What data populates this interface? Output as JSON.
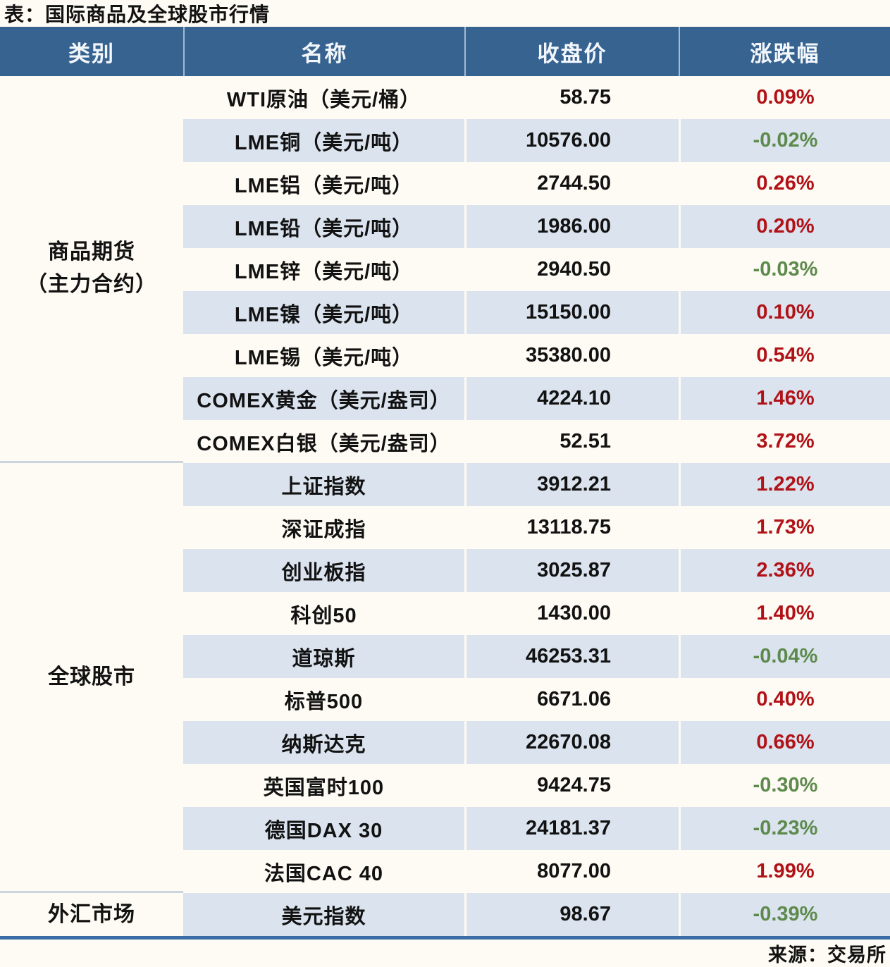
{
  "title": "表：国际商品及全球股市行情",
  "source": "来源：交易所",
  "colors": {
    "up": "#b11217",
    "down": "#5d8a4c",
    "header_bg": "#376391",
    "header_text": "#f3f7fb",
    "alt_row_bg": "#dae3ee",
    "bottom_border": "#3c6da6",
    "page_bg": "#fdfbf3"
  },
  "chart_data": {
    "type": "table",
    "title": "表：国际商品及全球股市行情",
    "columns": [
      "类别",
      "名称",
      "收盘价",
      "涨跌幅"
    ],
    "groups": [
      {
        "category": [
          "商品期货",
          "（主力合约）"
        ],
        "rows": [
          [
            "WTI原油（美元/桶）",
            "58.75",
            "0.09%",
            "up"
          ],
          [
            "LME铜（美元/吨）",
            "10576.00",
            "-0.02%",
            "down"
          ],
          [
            "LME铝（美元/吨）",
            "2744.50",
            "0.26%",
            "up"
          ],
          [
            "LME铅（美元/吨）",
            "1986.00",
            "0.20%",
            "up"
          ],
          [
            "LME锌（美元/吨）",
            "2940.50",
            "-0.03%",
            "down"
          ],
          [
            "LME镍（美元/吨）",
            "15150.00",
            "0.10%",
            "up"
          ],
          [
            "LME锡（美元/吨）",
            "35380.00",
            "0.54%",
            "up"
          ],
          [
            "COMEX黄金（美元/盎司）",
            "4224.10",
            "1.46%",
            "up"
          ],
          [
            "COMEX白银（美元/盎司）",
            "52.51",
            "3.72%",
            "up"
          ]
        ]
      },
      {
        "category": [
          "全球股市"
        ],
        "rows": [
          [
            "上证指数",
            "3912.21",
            "1.22%",
            "up"
          ],
          [
            "深证成指",
            "13118.75",
            "1.73%",
            "up"
          ],
          [
            "创业板指",
            "3025.87",
            "2.36%",
            "up"
          ],
          [
            "科创50",
            "1430.00",
            "1.40%",
            "up"
          ],
          [
            "道琼斯",
            "46253.31",
            "-0.04%",
            "down"
          ],
          [
            "标普500",
            "6671.06",
            "0.40%",
            "up"
          ],
          [
            "纳斯达克",
            "22670.08",
            "0.66%",
            "up"
          ],
          [
            "英国富时100",
            "9424.75",
            "-0.30%",
            "down"
          ],
          [
            "德国DAX 30",
            "24181.37",
            "-0.23%",
            "down"
          ],
          [
            "法国CAC 40",
            "8077.00",
            "1.99%",
            "up"
          ]
        ]
      },
      {
        "category": [
          "外汇市场"
        ],
        "rows": [
          [
            "美元指数",
            "98.67",
            "-0.39%",
            "down"
          ]
        ]
      }
    ],
    "source": "来源：交易所",
    "legend_note": "red=up, green=down",
    "grid": false
  }
}
